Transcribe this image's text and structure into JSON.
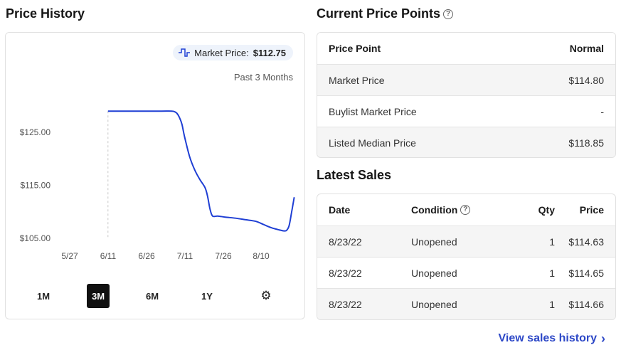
{
  "price_history": {
    "title": "Price History",
    "legend_label": "Market Price:",
    "legend_value": "$112.75",
    "range_label": "Past 3 Months",
    "ranges": [
      "1M",
      "3M",
      "6M",
      "1Y"
    ],
    "active_range": "3M",
    "settings_icon": "gear-icon",
    "line_color": "#1f3fd4"
  },
  "chart_data": {
    "type": "line",
    "x_tick_labels": [
      "5/27",
      "6/11",
      "6/26",
      "7/11",
      "7/26",
      "8/10"
    ],
    "y_tick_labels": [
      "$125.00",
      "$115.00",
      "$105.00"
    ],
    "y_ticks": [
      125,
      115,
      105
    ],
    "ylim": [
      103,
      131
    ],
    "series": [
      {
        "name": "Market Price",
        "x": [
          "2022-06-11",
          "2022-06-18",
          "2022-06-25",
          "2022-07-02",
          "2022-07-06",
          "2022-07-07",
          "2022-07-08",
          "2022-07-09",
          "2022-07-10",
          "2022-07-11",
          "2022-07-13",
          "2022-07-15",
          "2022-07-17",
          "2022-07-19",
          "2022-07-20",
          "2022-07-21",
          "2022-07-22",
          "2022-07-24",
          "2022-07-27",
          "2022-07-31",
          "2022-08-04",
          "2022-08-08",
          "2022-08-11",
          "2022-08-14",
          "2022-08-17",
          "2022-08-19",
          "2022-08-20",
          "2022-08-21",
          "2022-08-22",
          "2022-08-23"
        ],
        "y": [
          129.0,
          129.0,
          129.0,
          129.0,
          129.0,
          128.9,
          128.6,
          127.8,
          126.5,
          124.2,
          120.4,
          117.9,
          116.1,
          114.6,
          113.0,
          110.5,
          109.2,
          109.2,
          109.0,
          108.8,
          108.5,
          108.2,
          107.6,
          107.0,
          106.6,
          106.4,
          106.5,
          107.4,
          110.0,
          112.75
        ]
      }
    ]
  },
  "current_price_points": {
    "title": "Current Price Points",
    "headers": [
      "Price Point",
      "Normal"
    ],
    "rows": [
      {
        "label": "Market Price",
        "value": "$114.80"
      },
      {
        "label": "Buylist Market Price",
        "value": "-"
      },
      {
        "label": "Listed Median Price",
        "value": "$118.85"
      }
    ]
  },
  "latest_sales": {
    "title": "Latest Sales",
    "headers": {
      "date": "Date",
      "condition": "Condition",
      "qty": "Qty",
      "price": "Price"
    },
    "rows": [
      {
        "date": "8/23/22",
        "condition": "Unopened",
        "qty": "1",
        "price": "$114.63"
      },
      {
        "date": "8/23/22",
        "condition": "Unopened",
        "qty": "1",
        "price": "$114.65"
      },
      {
        "date": "8/23/22",
        "condition": "Unopened",
        "qty": "1",
        "price": "$114.66"
      }
    ],
    "view_history": "View sales history"
  }
}
